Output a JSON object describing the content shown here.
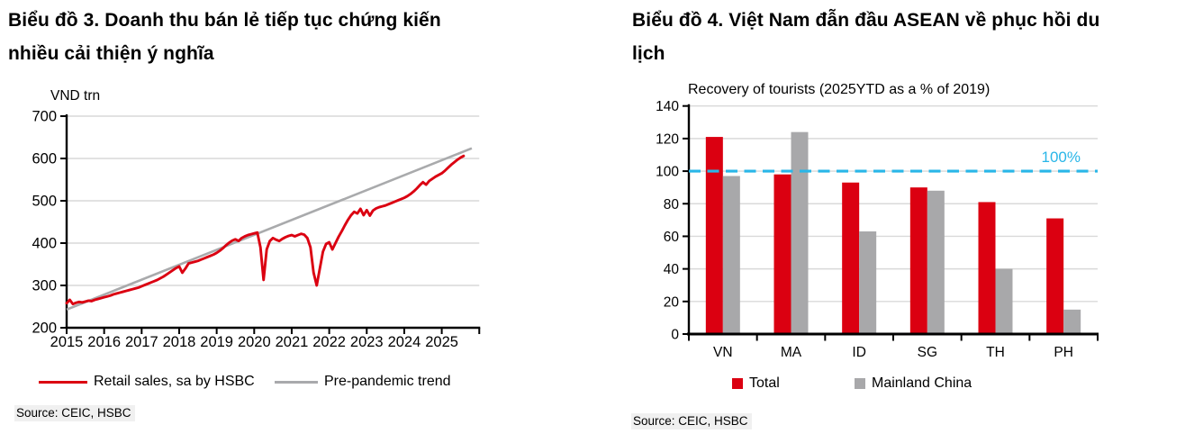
{
  "colors": {
    "red": "#db0011",
    "trend_gray": "#a9aaac",
    "bar_gray": "#a8a8aa",
    "cyan": "#29b6e8",
    "grid": "#d9d9d9",
    "axis": "#000000",
    "source_bg": "#f0f0f0"
  },
  "chart_data": [
    {
      "type": "line",
      "figure_title_lines": [
        "Biểu đồ 3. Doanh thu bán lẻ tiếp tục chứng kiến",
        "nhiều cải thiện ý nghĩa"
      ],
      "ylabel": "VND trn",
      "ylim": [
        200,
        700
      ],
      "yticks": [
        200,
        300,
        400,
        500,
        600,
        700
      ],
      "xticks": [
        2015,
        2016,
        2017,
        2018,
        2019,
        2020,
        2021,
        2022,
        2023,
        2024,
        2025
      ],
      "xlim": [
        2015,
        2026
      ],
      "grid": true,
      "legend_position": "bottom",
      "source": "Source: CEIC, HSBC",
      "series": [
        {
          "name": "Pre-pandemic trend",
          "color": "#a9aaac",
          "x": [
            2015.0,
            2025.8
          ],
          "values": [
            243,
            624
          ]
        },
        {
          "name": "Retail sales, sa by HSBC",
          "color": "#db0011",
          "x_start": 2015.0,
          "x_step": 0.083333,
          "values": [
            258,
            266,
            256,
            259,
            261,
            260,
            262,
            264,
            263,
            266,
            268,
            270,
            272,
            274,
            276,
            279,
            281,
            283,
            285,
            287,
            289,
            291,
            293,
            295,
            298,
            301,
            304,
            307,
            310,
            313,
            317,
            321,
            326,
            331,
            336,
            341,
            345,
            330,
            340,
            352,
            354,
            356,
            358,
            361,
            364,
            367,
            370,
            373,
            377,
            382,
            388,
            395,
            401,
            406,
            409,
            405,
            412,
            416,
            419,
            421,
            423,
            425,
            390,
            313,
            385,
            405,
            412,
            408,
            405,
            410,
            414,
            417,
            419,
            416,
            419,
            422,
            420,
            412,
            390,
            330,
            300,
            340,
            380,
            398,
            402,
            385,
            400,
            415,
            428,
            442,
            455,
            466,
            474,
            470,
            481,
            466,
            478,
            465,
            477,
            482,
            485,
            487,
            489,
            492,
            495,
            498,
            501,
            504,
            507,
            511,
            516,
            522,
            529,
            537,
            544,
            538,
            547,
            552,
            557,
            561,
            565,
            571,
            578,
            585,
            591,
            597,
            602,
            606
          ]
        }
      ]
    },
    {
      "type": "bar",
      "figure_title_lines": [
        "Biểu đồ 4. Việt Nam đẫn đầu ASEAN về phục hồi du",
        "lịch"
      ],
      "title": "Recovery of tourists (2025YTD as a % of 2019)",
      "categories": [
        "VN",
        "MA",
        "ID",
        "SG",
        "TH",
        "PH"
      ],
      "series": [
        {
          "name": "Total",
          "color": "#db0011",
          "values": [
            121,
            98,
            93,
            90,
            81,
            71
          ]
        },
        {
          "name": "Mainland China",
          "color": "#a8a8aa",
          "values": [
            97,
            124,
            63,
            88,
            40,
            15
          ]
        }
      ],
      "ylim": [
        0,
        140
      ],
      "yticks": [
        0,
        20,
        40,
        60,
        80,
        100,
        120,
        140
      ],
      "ref_line": {
        "value": 100,
        "label": "100%",
        "color": "#29b6e8",
        "style": "dashed"
      },
      "grid": true,
      "legend_position": "bottom",
      "source": "Source: CEIC, HSBC"
    }
  ]
}
